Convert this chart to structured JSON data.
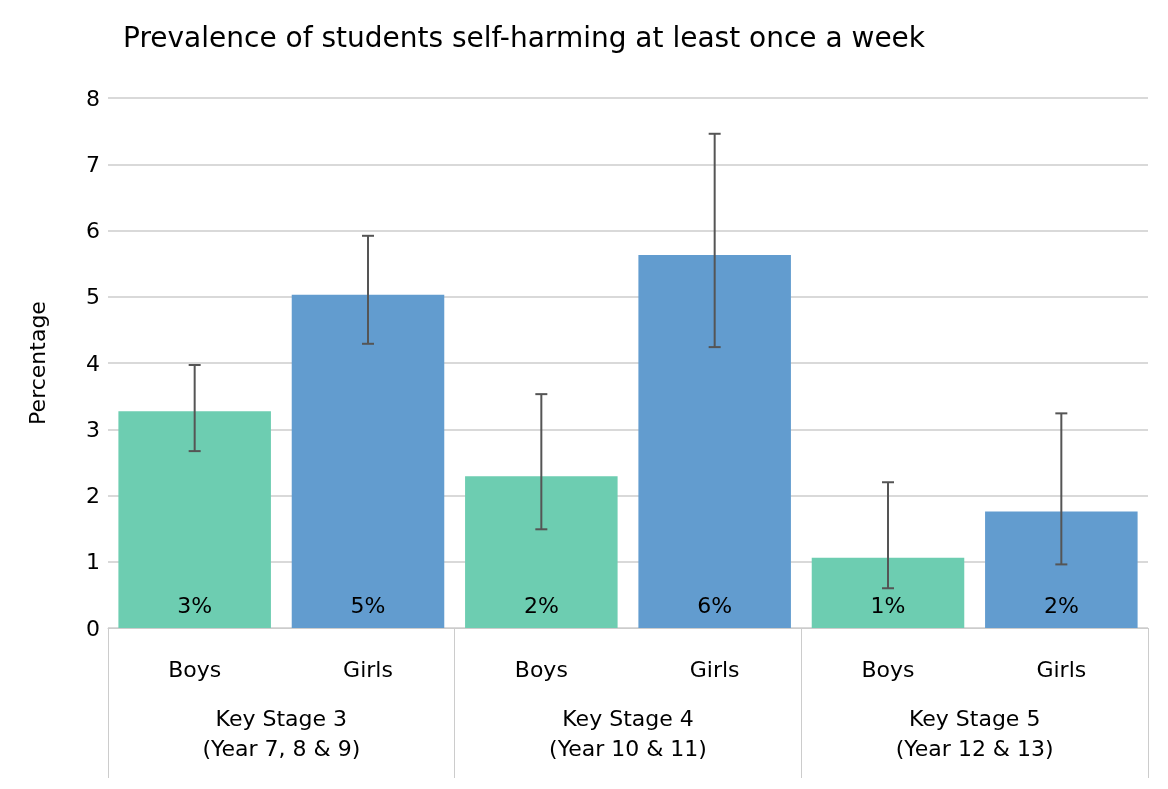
{
  "chart_data": {
    "type": "bar",
    "title": "Prevalence of students self-harming at least once a week",
    "ylabel": "Percentage",
    "categories": [
      "Boys",
      "Girls",
      "Boys",
      "Girls",
      "Boys",
      "Girls"
    ],
    "values": [
      3.27,
      5.03,
      2.29,
      5.63,
      1.06,
      1.76
    ],
    "colors": [
      "#6dcdb1",
      "#629ccf",
      "#6dcdb1",
      "#629ccf",
      "#6dcdb1",
      "#629ccf"
    ],
    "errors": [
      [
        2.67,
        3.97
      ],
      [
        4.29,
        5.92
      ],
      [
        1.49,
        3.53
      ],
      [
        4.24,
        7.46
      ],
      [
        0.6,
        2.2
      ],
      [
        0.96,
        3.24
      ]
    ],
    "value_labels": [
      "3%",
      "5%",
      "2%",
      "6%",
      "1%",
      "2%"
    ],
    "annotations": [
      "Key Stage 3\n(Year 7, 8 & 9)",
      "Key Stage 4\n(Year 10 & 11)",
      "Key Stage 5\n(Year 12 & 13)"
    ],
    "ylim": [
      0,
      8
    ],
    "yticks": [
      0,
      1,
      2,
      3,
      4,
      5,
      6,
      7,
      8
    ],
    "grid": "y"
  }
}
